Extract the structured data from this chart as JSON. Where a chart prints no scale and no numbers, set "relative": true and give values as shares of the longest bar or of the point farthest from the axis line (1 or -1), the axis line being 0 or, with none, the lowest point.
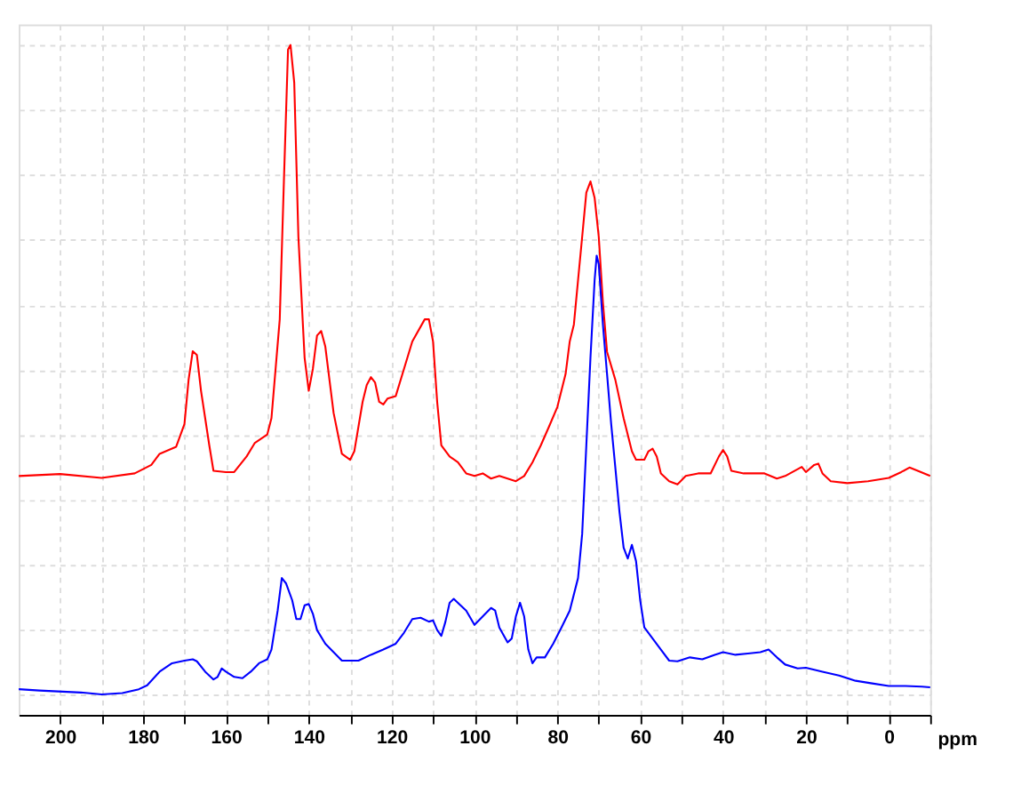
{
  "chart_data": {
    "type": "line",
    "relative": true,
    "xlabel": "ppm",
    "grid": true,
    "legend": false,
    "marker": "none",
    "line_style": "solid",
    "xlim": [
      210,
      -10
    ],
    "xticks": [
      200,
      {
        "value": 190,
        "label": null
      },
      180,
      {
        "value": 170,
        "label": null
      },
      160,
      {
        "value": 150,
        "label": null
      },
      140,
      {
        "value": 130,
        "label": null
      },
      120,
      {
        "value": 110,
        "label": null
      },
      100,
      {
        "value": 90,
        "label": null
      },
      80,
      {
        "value": 70,
        "label": null
      },
      60,
      {
        "value": 50,
        "label": null
      },
      40,
      {
        "value": 30,
        "label": null
      },
      20,
      {
        "value": 10,
        "label": null
      },
      0,
      {
        "value": -10,
        "label": null
      }
    ],
    "series": [
      {
        "color": "#ff0000",
        "x": [
          210,
          200,
          190,
          182,
          178,
          176,
          172,
          170,
          169,
          168,
          167,
          166,
          164,
          163,
          160,
          158,
          155,
          153,
          150,
          149,
          147,
          146,
          145,
          144.4,
          143.5,
          142.5,
          141,
          140,
          139,
          138,
          137,
          136,
          134,
          132,
          130,
          129,
          127,
          126,
          125,
          124,
          123,
          122,
          121,
          119,
          117,
          115,
          112,
          111,
          110,
          109,
          108,
          106,
          104,
          102,
          100,
          98,
          96,
          94,
          92,
          90,
          88,
          86,
          84,
          82,
          80,
          78,
          77,
          76,
          75,
          74,
          73,
          72,
          71,
          70,
          69,
          68,
          66,
          64,
          62,
          61,
          59,
          58,
          57,
          56,
          55,
          53,
          51,
          49,
          46,
          43,
          41,
          40,
          39,
          38,
          35,
          30,
          27,
          25,
          21,
          20,
          18,
          17,
          16,
          14,
          10,
          5,
          0,
          -3,
          -5,
          -7,
          -10
        ],
        "values": [
          0.337,
          0.34,
          0.334,
          0.341,
          0.354,
          0.371,
          0.382,
          0.417,
          0.485,
          0.529,
          0.523,
          0.468,
          0.384,
          0.345,
          0.343,
          0.343,
          0.367,
          0.388,
          0.401,
          0.426,
          0.578,
          0.79,
          0.993,
          1.0,
          0.942,
          0.705,
          0.519,
          0.468,
          0.502,
          0.553,
          0.56,
          0.536,
          0.434,
          0.371,
          0.362,
          0.375,
          0.451,
          0.477,
          0.489,
          0.481,
          0.451,
          0.447,
          0.456,
          0.46,
          0.502,
          0.544,
          0.578,
          0.578,
          0.544,
          0.451,
          0.384,
          0.367,
          0.358,
          0.341,
          0.337,
          0.341,
          0.333,
          0.337,
          0.333,
          0.329,
          0.337,
          0.358,
          0.384,
          0.413,
          0.443,
          0.494,
          0.544,
          0.57,
          0.638,
          0.705,
          0.773,
          0.79,
          0.765,
          0.705,
          0.604,
          0.528,
          0.485,
          0.426,
          0.375,
          0.362,
          0.362,
          0.375,
          0.379,
          0.367,
          0.341,
          0.329,
          0.324,
          0.337,
          0.341,
          0.341,
          0.367,
          0.377,
          0.367,
          0.345,
          0.341,
          0.341,
          0.333,
          0.337,
          0.351,
          0.343,
          0.354,
          0.356,
          0.341,
          0.329,
          0.326,
          0.329,
          0.334,
          0.343,
          0.35,
          0.345,
          0.337
        ]
      },
      {
        "color": "#0000ff",
        "x": [
          210,
          205,
          195,
          190,
          185,
          181,
          179,
          176,
          173,
          170,
          168,
          167,
          165,
          163,
          162,
          161,
          160,
          158,
          156,
          154,
          152,
          150,
          149,
          147.5,
          146.5,
          145.5,
          144,
          143,
          142,
          141,
          140,
          139,
          138,
          136,
          134,
          132,
          130,
          128,
          125,
          122,
          119,
          117,
          115,
          113,
          111,
          110,
          109,
          108,
          107,
          106,
          105,
          104,
          102,
          100,
          98,
          96,
          95,
          94,
          92,
          91,
          90,
          89,
          88,
          87,
          86,
          85,
          83,
          81,
          79,
          77,
          75,
          74,
          73,
          72,
          71,
          70.5,
          70,
          69,
          68,
          67,
          66,
          65,
          64,
          63,
          62,
          61,
          60,
          59,
          57,
          55,
          53,
          51,
          48,
          45,
          42,
          40,
          37,
          34,
          31,
          29,
          27,
          25,
          22,
          20,
          16,
          12,
          8,
          4,
          0,
          -4,
          -8,
          -10
        ],
        "values": [
          0.009,
          0.007,
          0.004,
          0.001,
          0.003,
          0.009,
          0.015,
          0.036,
          0.049,
          0.053,
          0.055,
          0.052,
          0.036,
          0.024,
          0.028,
          0.041,
          0.036,
          0.028,
          0.026,
          0.036,
          0.049,
          0.055,
          0.07,
          0.13,
          0.18,
          0.172,
          0.146,
          0.117,
          0.117,
          0.138,
          0.14,
          0.125,
          0.1,
          0.079,
          0.066,
          0.053,
          0.053,
          0.053,
          0.062,
          0.07,
          0.079,
          0.096,
          0.117,
          0.119,
          0.113,
          0.115,
          0.1,
          0.091,
          0.113,
          0.142,
          0.148,
          0.142,
          0.13,
          0.108,
          0.121,
          0.134,
          0.13,
          0.104,
          0.081,
          0.087,
          0.121,
          0.142,
          0.121,
          0.07,
          0.049,
          0.058,
          0.058,
          0.079,
          0.104,
          0.13,
          0.18,
          0.248,
          0.384,
          0.519,
          0.638,
          0.676,
          0.663,
          0.57,
          0.494,
          0.417,
          0.35,
          0.282,
          0.227,
          0.21,
          0.231,
          0.206,
          0.146,
          0.104,
          0.087,
          0.07,
          0.053,
          0.052,
          0.058,
          0.055,
          0.062,
          0.066,
          0.062,
          0.064,
          0.066,
          0.07,
          0.058,
          0.047,
          0.041,
          0.042,
          0.036,
          0.03,
          0.022,
          0.018,
          0.014,
          0.014,
          0.013,
          0.012
        ]
      }
    ]
  }
}
